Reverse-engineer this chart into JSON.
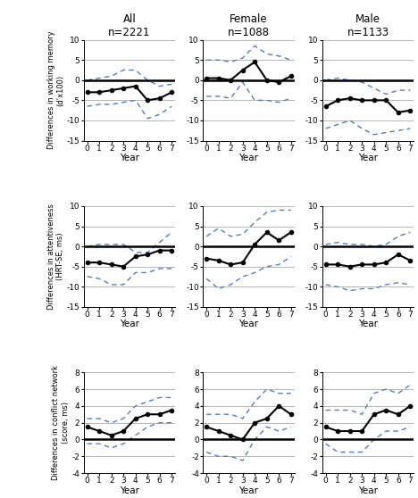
{
  "titles_line1": [
    "All",
    "Female",
    "Male"
  ],
  "titles_line2": [
    "n=2221",
    "n=1088",
    "n=1133"
  ],
  "row_ylabels": [
    "Differences in working memory\n(d’x100)",
    "Differences in attentiveness\n(HRT-SE, ms)",
    "Differences in conflict network\n(score, ms)"
  ],
  "xlabel": "Year",
  "years": [
    0,
    1,
    2,
    3,
    4,
    5,
    6,
    7
  ],
  "row0": {
    "mean": [
      [
        -3.0,
        -3.0,
        -2.5,
        -2.0,
        -1.5,
        -5.0,
        -4.5,
        -3.0
      ],
      [
        0.5,
        0.5,
        0.0,
        2.5,
        4.5,
        0.0,
        -0.5,
        1.0
      ],
      [
        -6.5,
        -5.0,
        -4.5,
        -5.0,
        -5.0,
        -5.0,
        -8.0,
        -7.5
      ]
    ],
    "upper": [
      [
        0.0,
        0.5,
        1.0,
        2.5,
        2.5,
        0.0,
        -1.5,
        -1.0
      ],
      [
        5.0,
        5.0,
        4.5,
        5.5,
        8.5,
        6.5,
        6.0,
        5.0
      ],
      [
        0.0,
        0.5,
        0.0,
        -0.5,
        -2.0,
        -3.5,
        -2.5,
        -2.5
      ]
    ],
    "lower": [
      [
        -6.5,
        -6.0,
        -6.0,
        -5.5,
        -5.0,
        -9.5,
        -8.5,
        -6.5
      ],
      [
        -4.0,
        -4.0,
        -4.5,
        -0.5,
        -5.0,
        -5.0,
        -5.5,
        -4.5
      ],
      [
        -12.0,
        -11.0,
        -10.0,
        -12.0,
        -13.5,
        -13.0,
        -12.5,
        -12.0
      ]
    ],
    "ylim": [
      -15,
      10
    ],
    "yticks": [
      -15,
      -10,
      -5,
      0,
      5,
      10
    ]
  },
  "row1": {
    "mean": [
      [
        -4.0,
        -4.0,
        -4.5,
        -5.0,
        -2.5,
        -2.0,
        -1.0,
        -1.0
      ],
      [
        -3.0,
        -3.5,
        -4.5,
        -4.0,
        0.5,
        3.5,
        1.5,
        3.5
      ],
      [
        -4.5,
        -4.5,
        -5.0,
        -4.5,
        -4.5,
        -4.0,
        -2.0,
        -3.5
      ]
    ],
    "upper": [
      [
        0.0,
        0.5,
        0.5,
        0.5,
        -1.5,
        -1.5,
        1.0,
        3.5
      ],
      [
        2.5,
        4.5,
        2.5,
        3.0,
        6.0,
        8.5,
        9.0,
        9.0
      ],
      [
        0.5,
        1.0,
        0.5,
        0.5,
        0.0,
        0.5,
        2.5,
        3.5
      ]
    ],
    "lower": [
      [
        -7.5,
        -8.0,
        -9.5,
        -9.5,
        -6.5,
        -6.5,
        -5.5,
        -5.5
      ],
      [
        -8.0,
        -10.5,
        -9.5,
        -7.5,
        -6.5,
        -5.0,
        -4.5,
        -2.5
      ],
      [
        -9.5,
        -10.0,
        -11.0,
        -10.5,
        -10.5,
        -9.5,
        -9.0,
        -9.5
      ]
    ],
    "ylim": [
      -15,
      10
    ],
    "yticks": [
      -15,
      -10,
      -5,
      0,
      5,
      10
    ]
  },
  "row2": {
    "mean": [
      [
        1.5,
        1.0,
        0.5,
        1.0,
        2.5,
        3.0,
        3.0,
        3.5
      ],
      [
        1.5,
        1.0,
        0.5,
        0.0,
        2.0,
        2.5,
        4.0,
        3.0
      ],
      [
        1.5,
        1.0,
        1.0,
        1.0,
        3.0,
        3.5,
        3.0,
        4.0
      ]
    ],
    "upper": [
      [
        2.5,
        2.5,
        2.0,
        2.5,
        4.0,
        4.5,
        5.0,
        5.0
      ],
      [
        3.0,
        3.0,
        3.0,
        2.5,
        4.5,
        6.0,
        5.5,
        5.5
      ],
      [
        3.5,
        3.5,
        3.5,
        3.0,
        5.5,
        6.0,
        5.5,
        6.5
      ]
    ],
    "lower": [
      [
        -0.5,
        -0.5,
        -1.0,
        -0.5,
        0.5,
        1.5,
        2.0,
        2.0
      ],
      [
        -1.5,
        -2.0,
        -2.0,
        -2.5,
        0.0,
        1.5,
        1.0,
        1.5
      ],
      [
        -0.5,
        -1.5,
        -1.5,
        -1.5,
        0.0,
        1.0,
        1.0,
        1.5
      ]
    ],
    "ylim": [
      -4,
      8
    ],
    "yticks": [
      -4,
      -2,
      0,
      2,
      4,
      6,
      8
    ]
  },
  "line_color": "#000000",
  "ci_color": "#5B7DB1",
  "zero_line_color": "#000000",
  "grid_color": "#AAAAAA",
  "bg_color": "#FFFFFF"
}
